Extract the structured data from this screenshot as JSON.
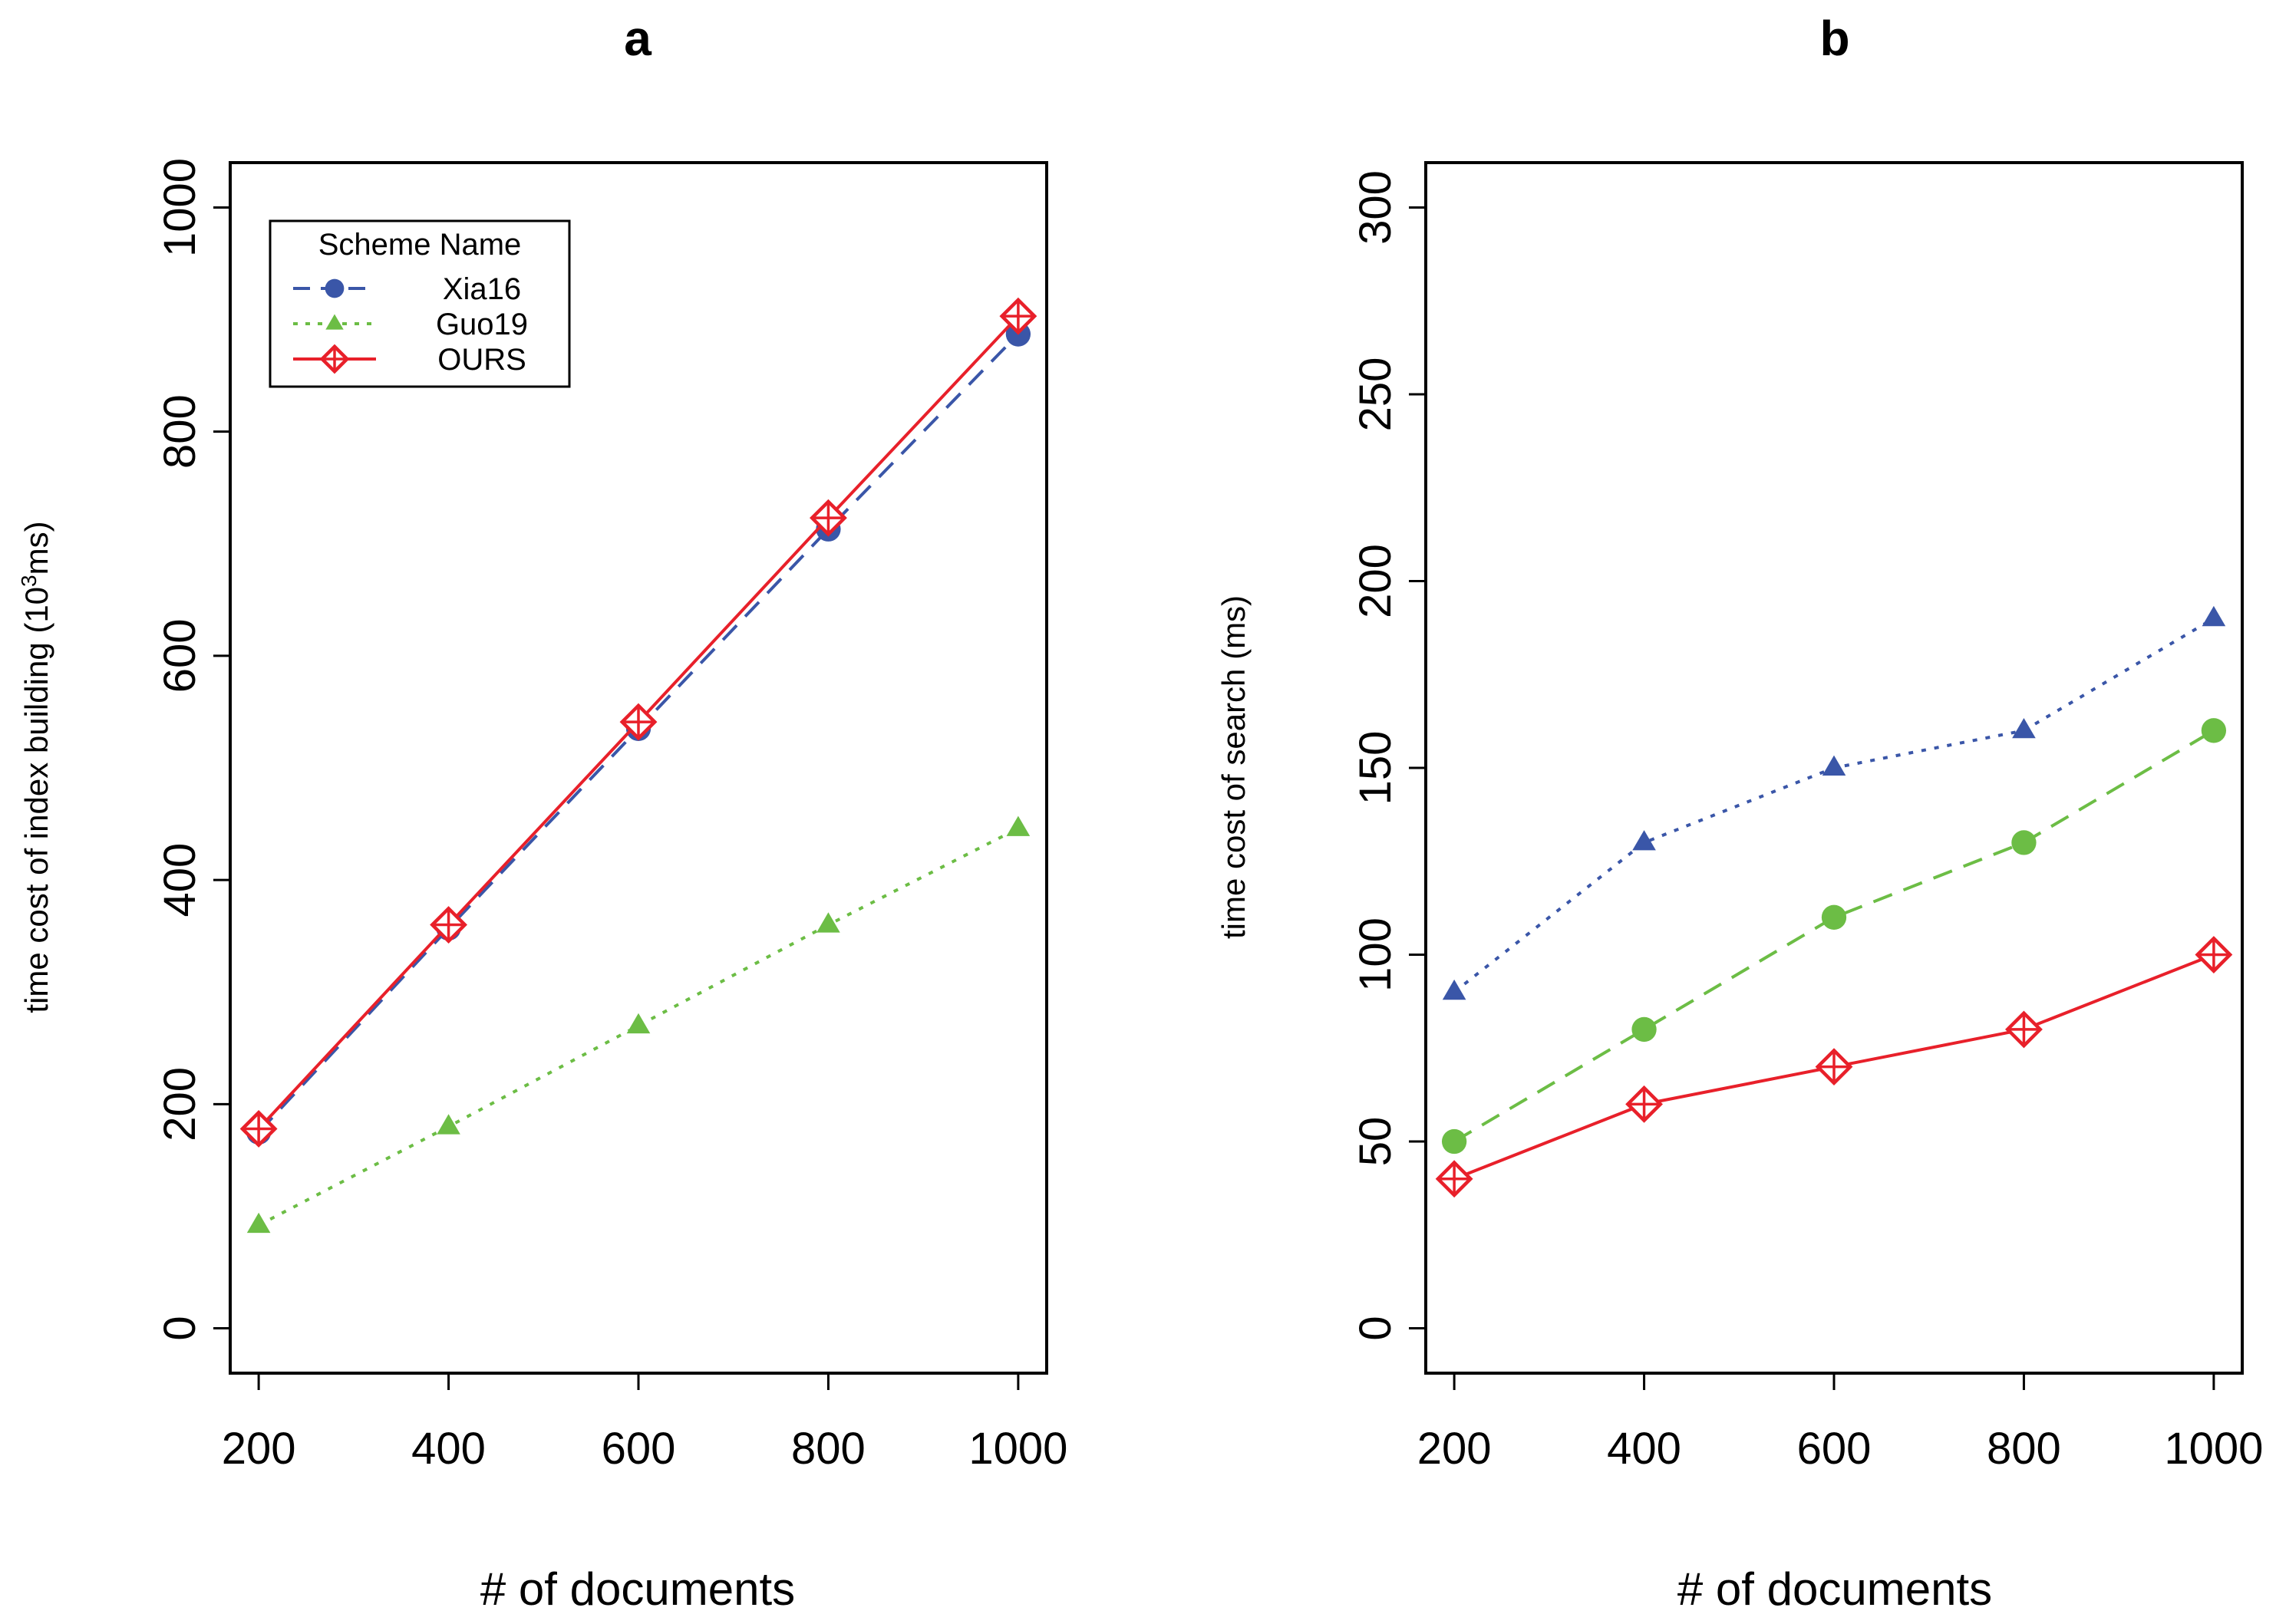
{
  "chart_data": [
    {
      "type": "line",
      "title": "a",
      "xlabel": "# of documents",
      "ylabel_main": "time cost of index building (10",
      "ylabel_sup": "3",
      "ylabel_tail": "ms)",
      "x": [
        200,
        400,
        600,
        800,
        1000
      ],
      "xticks": [
        "200",
        "400",
        "600",
        "800",
        "1000"
      ],
      "yticks": [
        0,
        200,
        400,
        600,
        800,
        1000
      ],
      "ylim": [
        -40,
        1040
      ],
      "xlim": [
        170,
        1030
      ],
      "legend": {
        "title": "Scheme Name",
        "placement": "top-left"
      },
      "series": [
        {
          "name": "Xia16",
          "style": "dashed",
          "marker": "circle",
          "color": "#3a56a8",
          "values": [
            175,
            357,
            535,
            713,
            887
          ]
        },
        {
          "name": "Guo19",
          "style": "dotted",
          "marker": "triangle",
          "color": "#6cbd45",
          "values": [
            92,
            180,
            270,
            360,
            446
          ]
        },
        {
          "name": "OURS",
          "style": "solid",
          "marker": "diamond-plus",
          "color": "#e8202a",
          "values": [
            178,
            360,
            541,
            723,
            903
          ]
        }
      ]
    },
    {
      "type": "line",
      "title": "b",
      "xlabel": "# of documents",
      "ylabel_main": "time cost of search (ms)",
      "ylabel_sup": "",
      "ylabel_tail": "",
      "x": [
        200,
        400,
        600,
        800,
        1000
      ],
      "xticks": [
        "200",
        "400",
        "600",
        "800",
        "1000"
      ],
      "yticks": [
        0,
        50,
        100,
        150,
        200,
        250,
        300
      ],
      "ylim": [
        -12,
        312
      ],
      "xlim": [
        170,
        1030
      ],
      "series": [
        {
          "name": "Xia16",
          "style": "dotted",
          "marker": "triangle",
          "color": "#3a56a8",
          "values": [
            90,
            130,
            150,
            160,
            190
          ]
        },
        {
          "name": "Guo19",
          "style": "dashed",
          "marker": "circle",
          "color": "#6cbd45",
          "values": [
            50,
            80,
            110,
            130,
            160
          ]
        },
        {
          "name": "OURS",
          "style": "solid",
          "marker": "diamond-plus",
          "color": "#e8202a",
          "values": [
            40,
            60,
            70,
            80,
            100
          ]
        }
      ]
    }
  ]
}
